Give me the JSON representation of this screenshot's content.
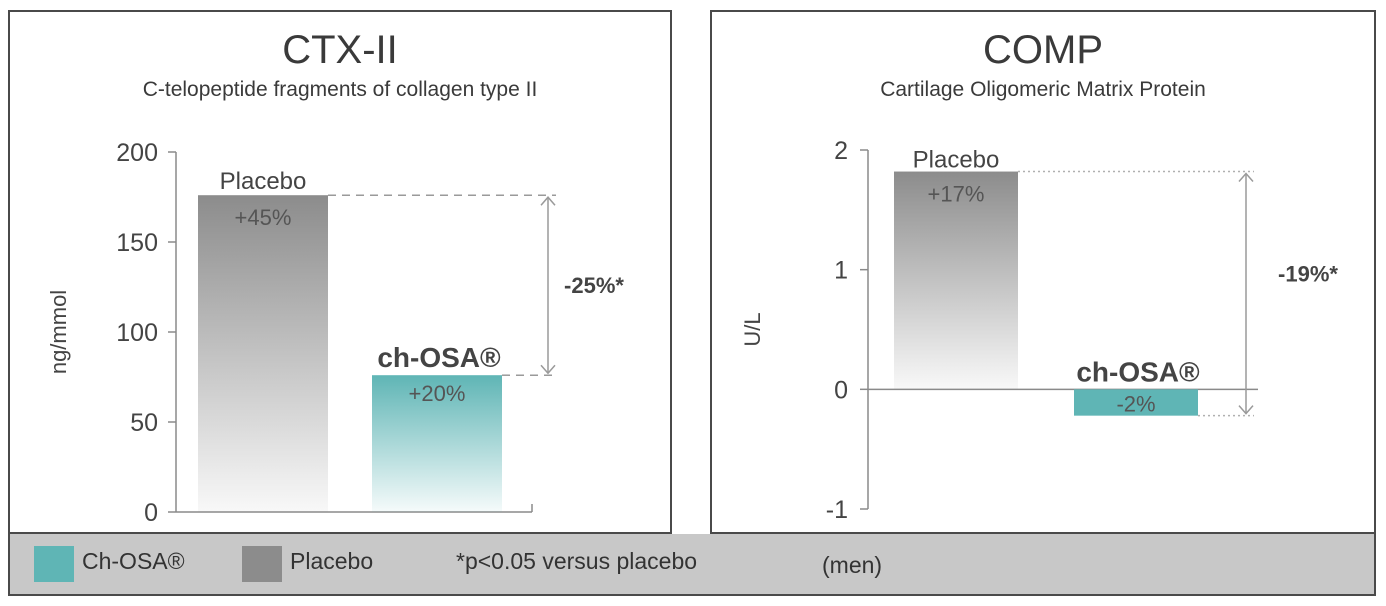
{
  "colors": {
    "placebo": "#8c8c8c",
    "chosa": "#5fb5b5",
    "axis": "#8a8a8a",
    "text": "#444444",
    "legend_bg": "#c8c8c8"
  },
  "chart_data": [
    {
      "type": "bar",
      "title": "CTX-II",
      "subtitle": "C-telopeptide fragments of collagen type II",
      "ylabel": "ng/mmol",
      "ylim": [
        0,
        200
      ],
      "yticks": [
        0,
        50,
        100,
        150,
        200
      ],
      "categories": [
        "Placebo",
        "ch-OSA®"
      ],
      "values": [
        176,
        76
      ],
      "bar_labels": [
        "+45%",
        "+20%"
      ],
      "difference_label": "-25%*",
      "grid": false
    },
    {
      "type": "bar",
      "title": "COMP",
      "subtitle": "Cartilage Oligomeric Matrix Protein",
      "ylabel": "U/L",
      "ylim": [
        -1,
        2
      ],
      "yticks": [
        -1,
        0,
        1,
        2
      ],
      "categories": [
        "Placebo",
        "ch-OSA®"
      ],
      "values": [
        1.82,
        -0.22
      ],
      "bar_labels": [
        "+17%",
        "-2%"
      ],
      "difference_label": "-19%*",
      "grid": false
    }
  ],
  "legend": {
    "chosa_label": "Ch-OSA®",
    "placebo_label": "Placebo",
    "note": "*p<0.05 versus placebo",
    "population": "(men)"
  }
}
